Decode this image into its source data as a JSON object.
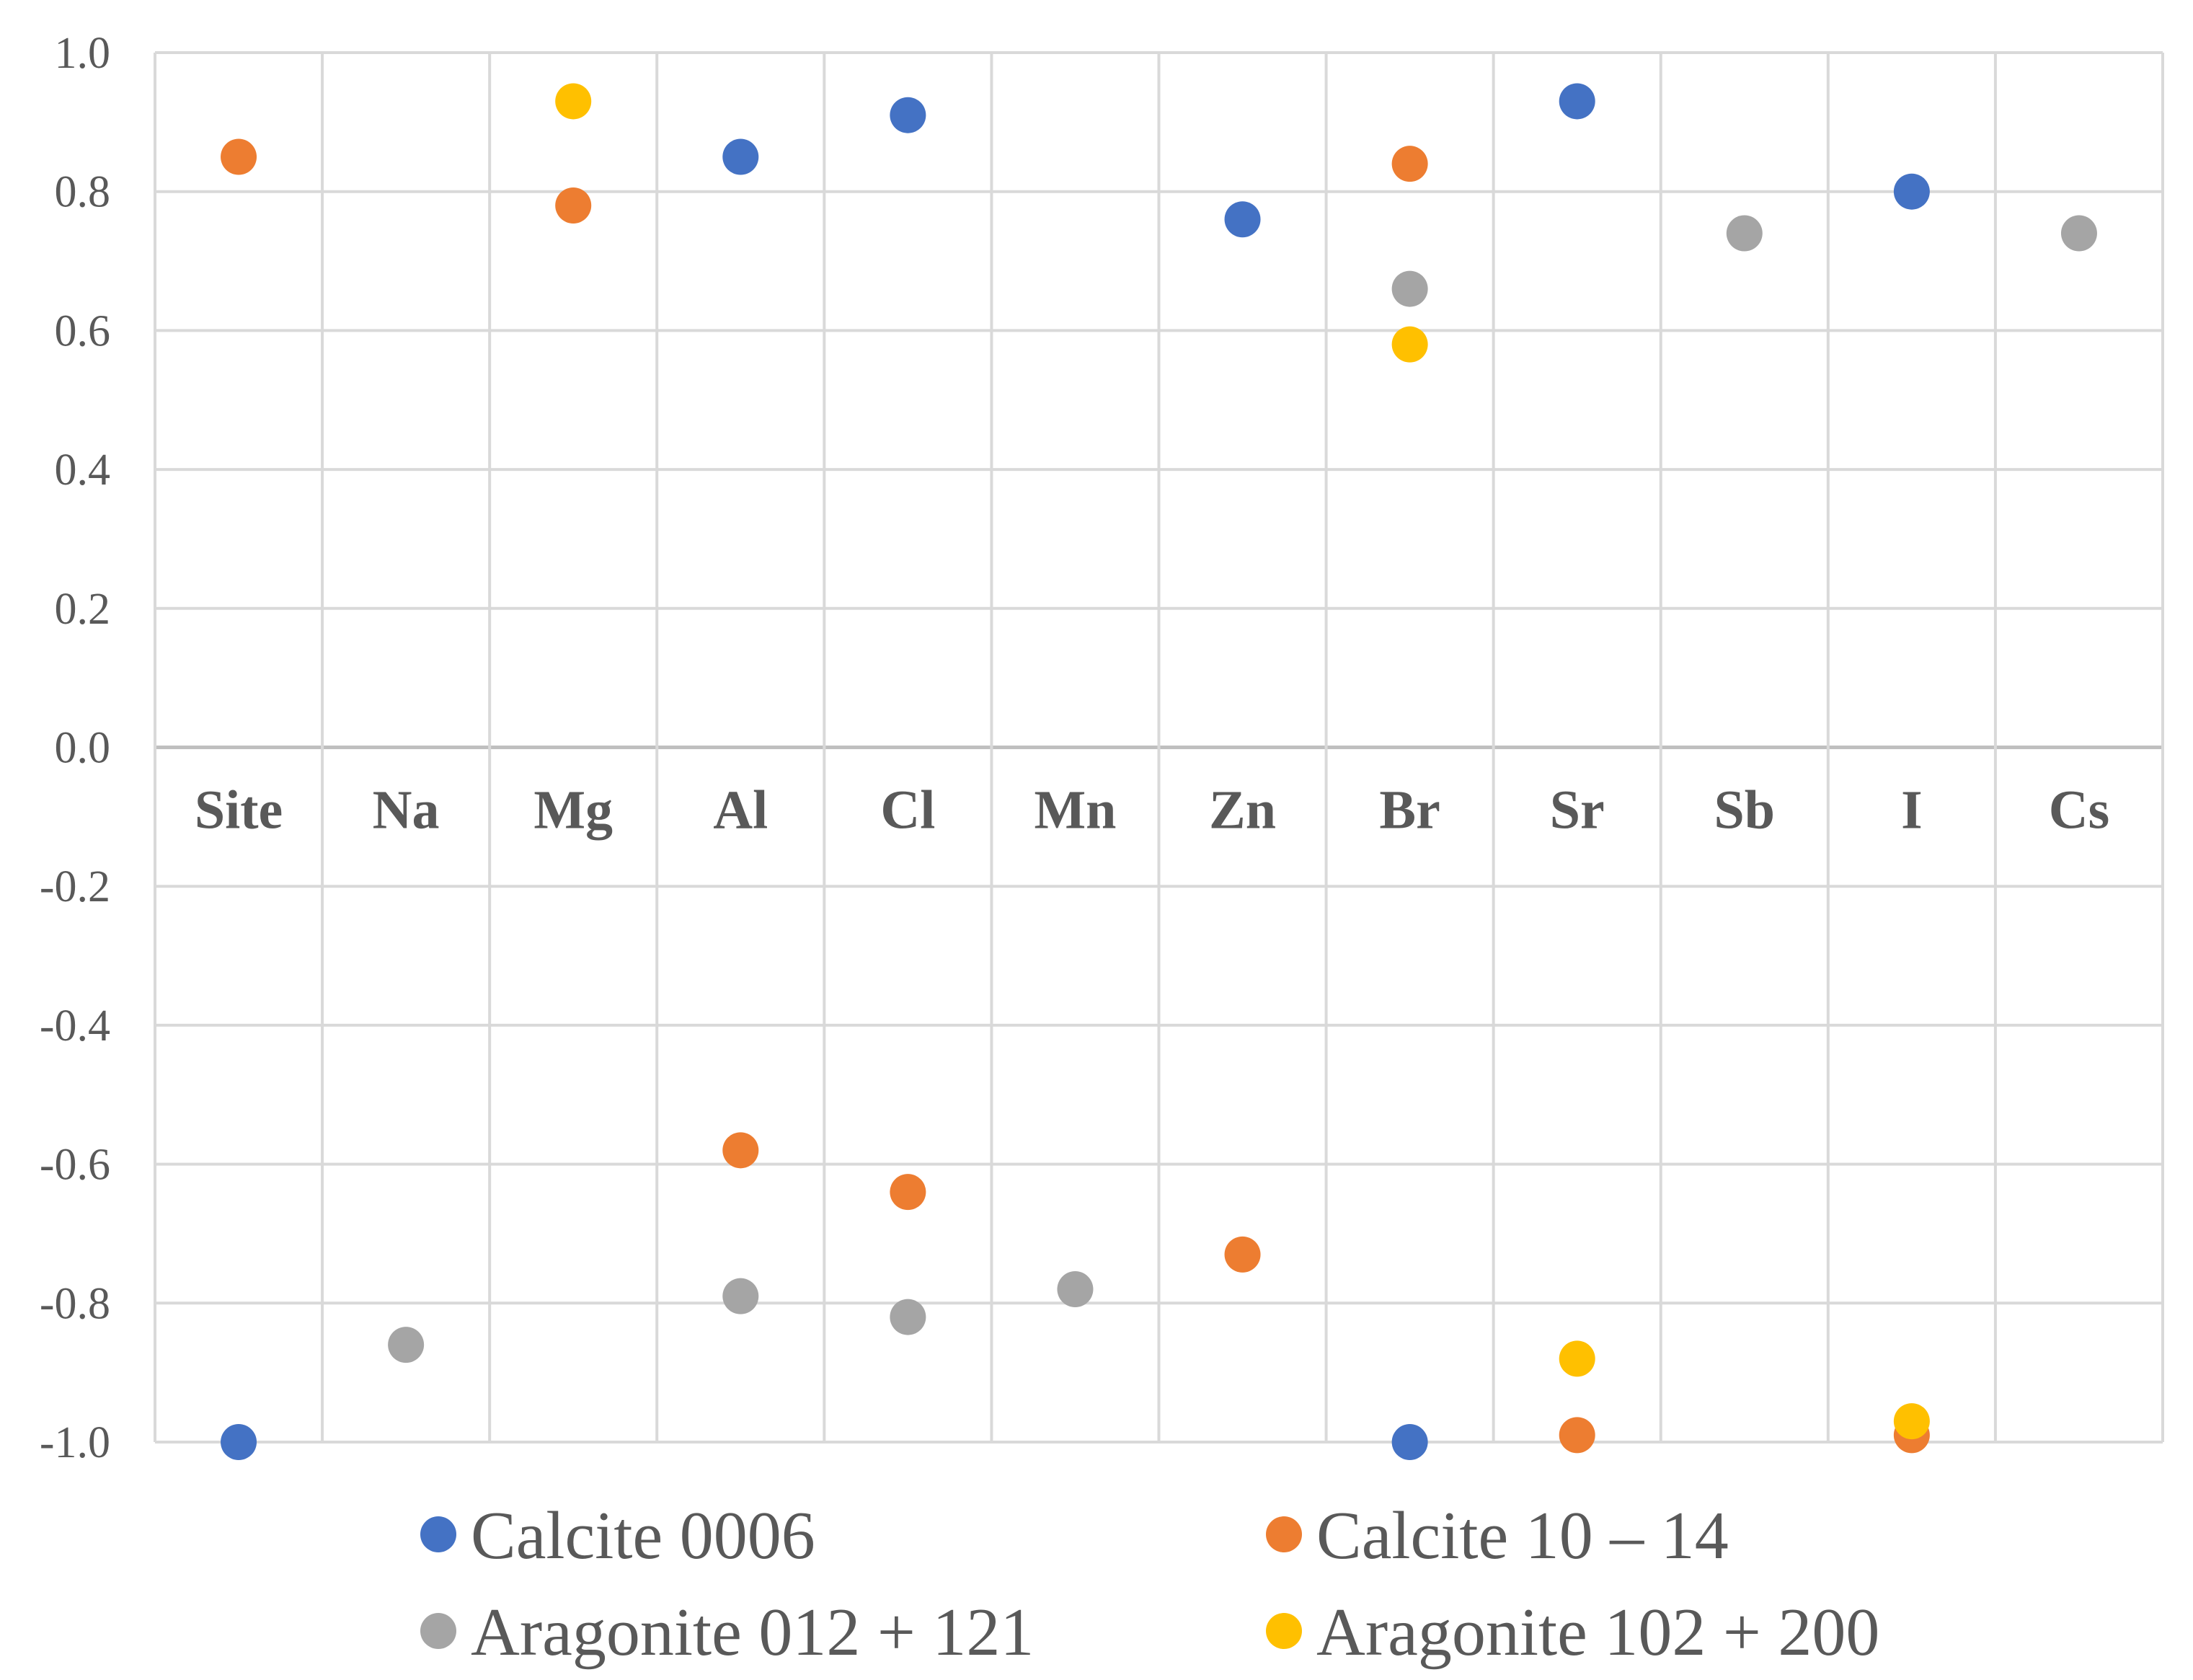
{
  "chart_data": {
    "type": "scatter",
    "title": "",
    "xlabel": "",
    "ylabel": "",
    "ylim": [
      -1.0,
      1.0
    ],
    "yticks": [
      1.0,
      0.8,
      0.6,
      0.4,
      0.2,
      0.0,
      -0.2,
      -0.4,
      -0.6,
      -0.8,
      -1.0
    ],
    "ytick_labels": [
      "1.0",
      "0.8",
      "0.6",
      "0.4",
      "0.2",
      "0.0",
      "-0.2",
      "-0.4",
      "-0.6",
      "-0.8",
      "-1.0"
    ],
    "categories": [
      "Site",
      "Na",
      "Mg",
      "Al",
      "Cl",
      "Mn",
      "Zn",
      "Br",
      "Sr",
      "Sb",
      "I",
      "Cs"
    ],
    "grid": true,
    "legend_position": "bottom",
    "series": [
      {
        "name": "Calcite 0006",
        "color": "#4472C4",
        "values": [
          -1.0,
          null,
          null,
          0.85,
          0.91,
          null,
          0.76,
          -1.0,
          0.93,
          null,
          0.8,
          null
        ]
      },
      {
        "name": "Calcite 10 – 14",
        "color": "#ED7D31",
        "values": [
          0.85,
          null,
          0.78,
          -0.58,
          -0.64,
          null,
          -0.73,
          0.84,
          -0.99,
          null,
          -0.99,
          null
        ]
      },
      {
        "name": "Aragonite 012 + 121",
        "color": "#A5A5A5",
        "values": [
          null,
          -0.86,
          null,
          -0.79,
          -0.82,
          -0.78,
          null,
          0.66,
          null,
          0.74,
          null,
          0.74
        ]
      },
      {
        "name": "Aragonite 102 + 200",
        "color": "#FFC000",
        "values": [
          null,
          null,
          0.93,
          null,
          null,
          null,
          null,
          0.58,
          -0.88,
          null,
          -0.97,
          null
        ]
      }
    ]
  }
}
